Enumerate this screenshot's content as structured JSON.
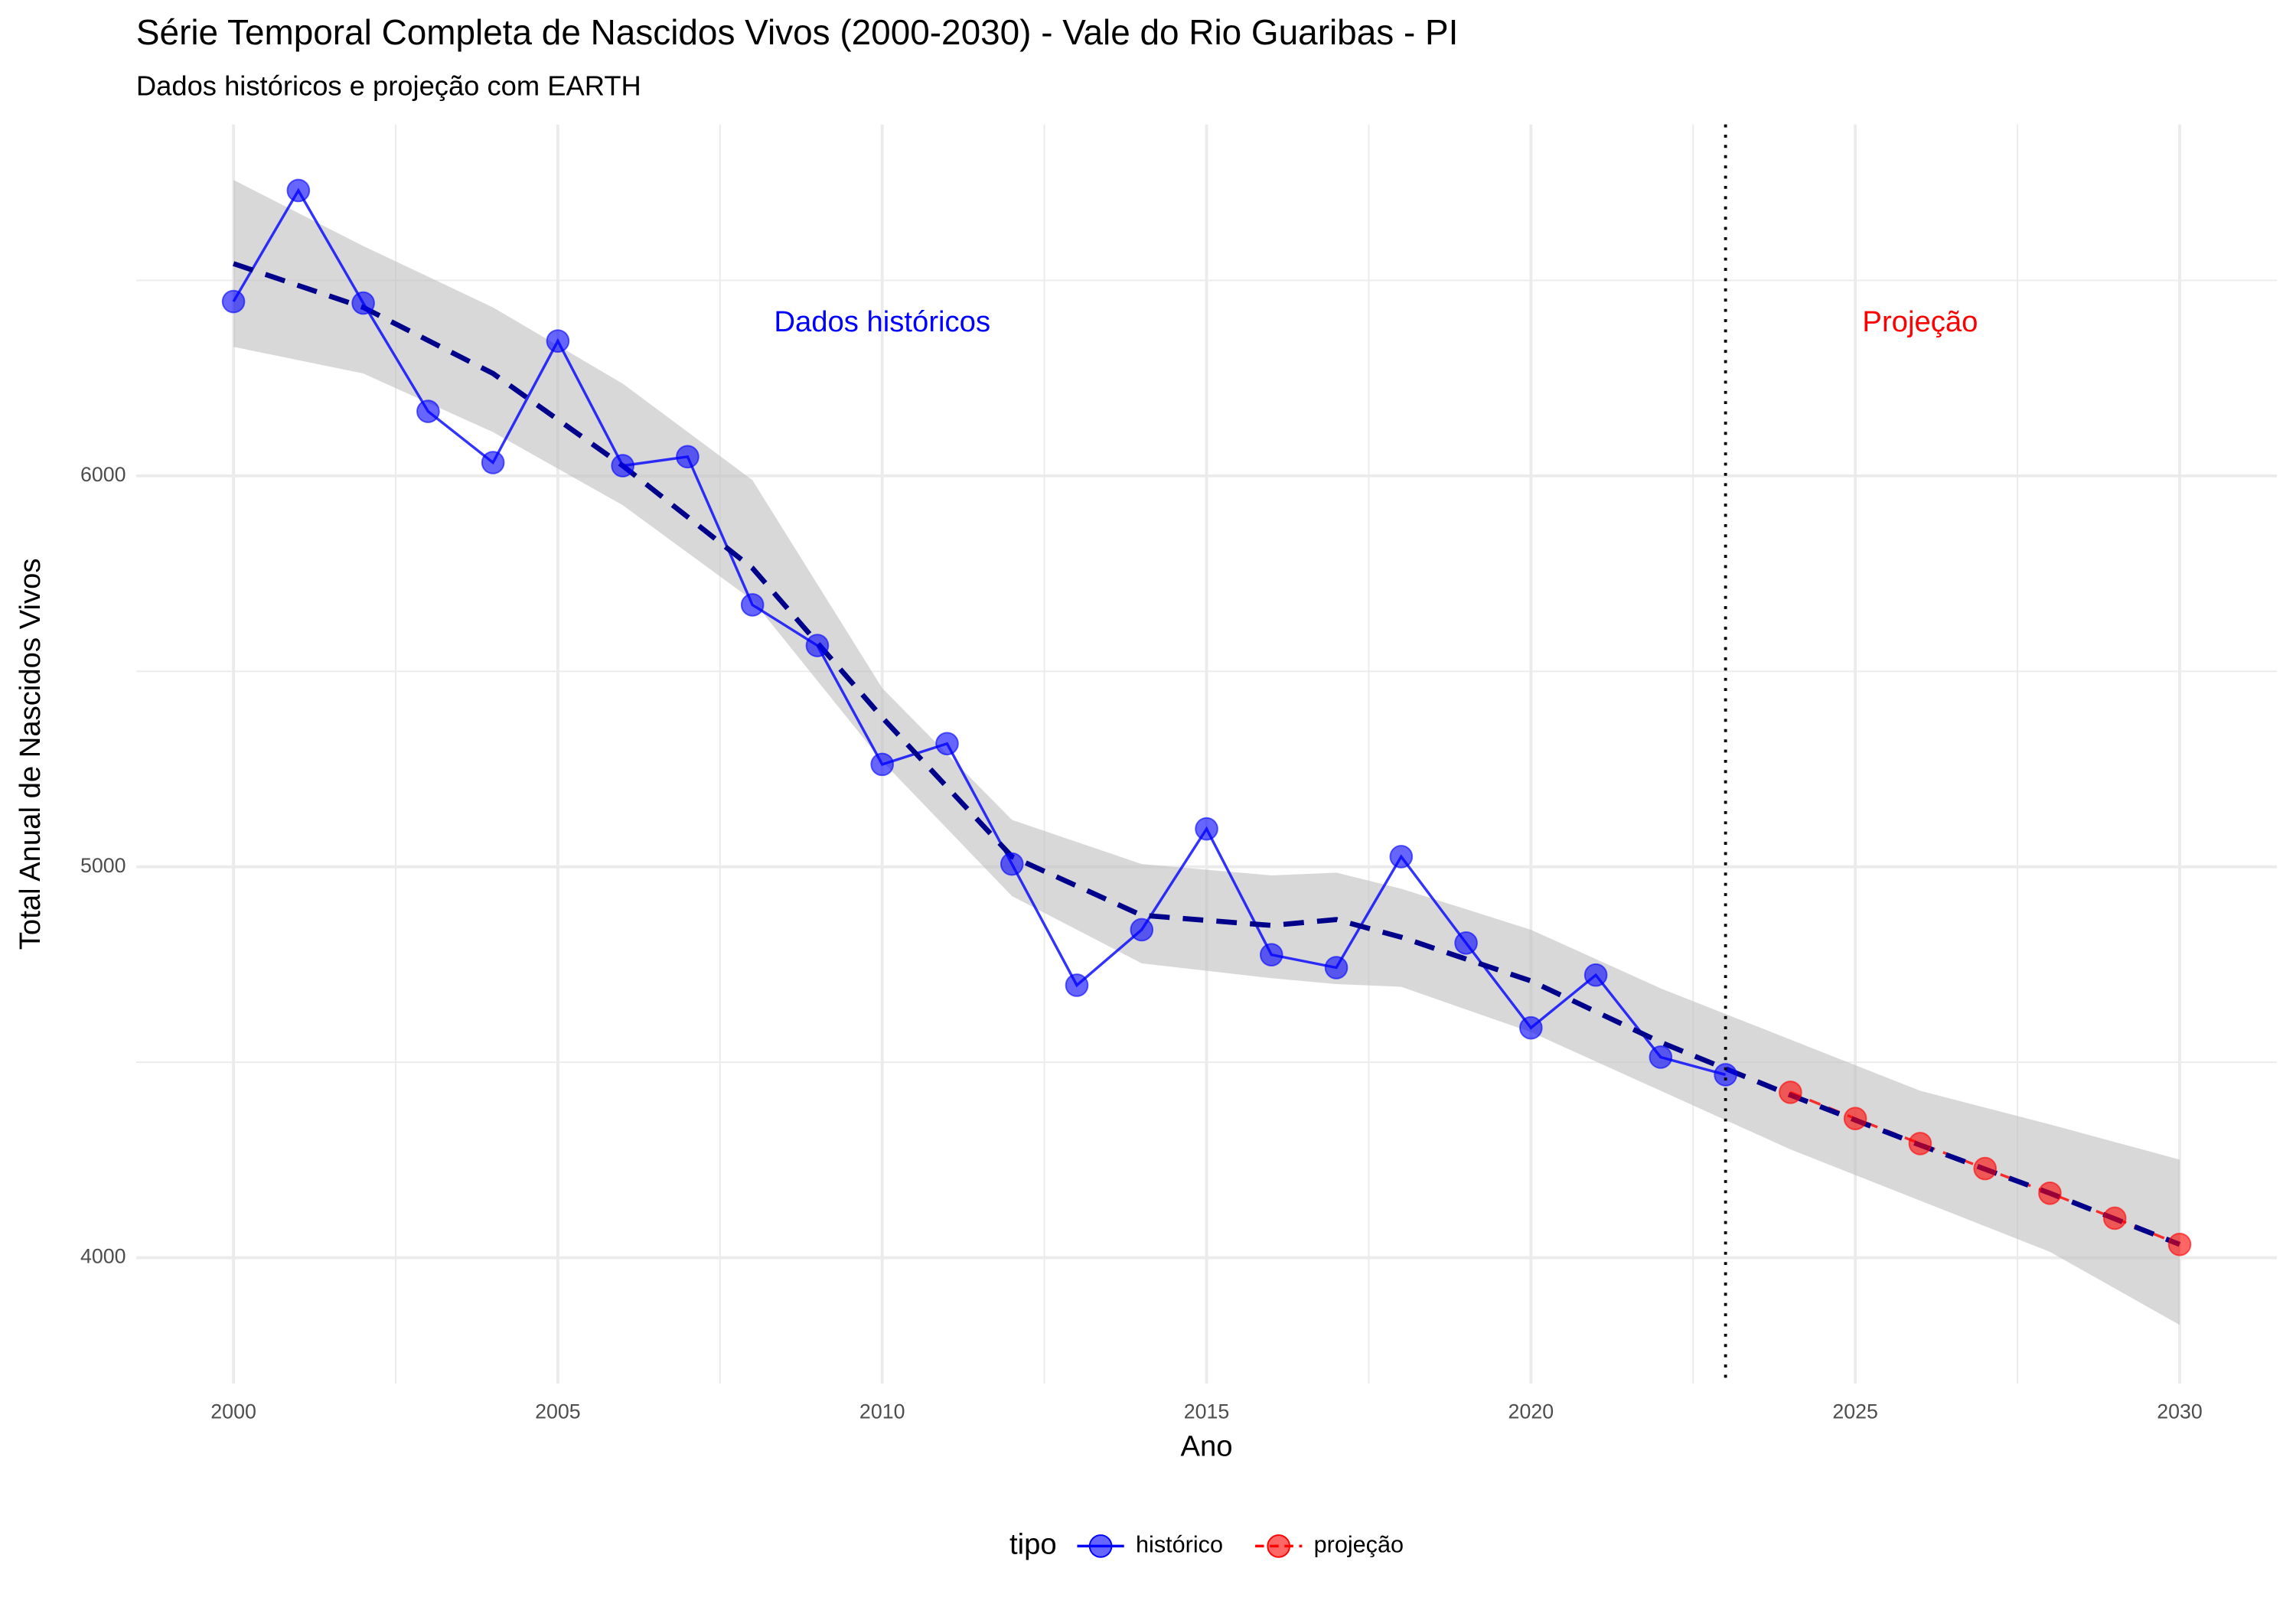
{
  "chart_data": {
    "type": "line",
    "title": "Série Temporal Completa de Nascidos Vivos (2000-2030) -  Vale do Rio Guaribas - PI",
    "subtitle": "Dados históricos e projeção com EARTH",
    "x_label": "Ano",
    "y_label": "Total Anual de Nascidos Vivos",
    "xlim": [
      1998.5,
      2031.5
    ],
    "ylim": [
      3678,
      6899
    ],
    "xticks": [
      2000,
      2005,
      2010,
      2015,
      2020,
      2025,
      2030
    ],
    "yticks": [
      4000,
      5000,
      6000
    ],
    "x_minor_ticks": [
      2002.5,
      2007.5,
      2012.5,
      2017.5,
      2022.5,
      2027.5
    ],
    "y_minor_ticks": [
      4500,
      5500,
      6500
    ],
    "grid": true,
    "legend_title": "tipo",
    "legend_position": "bottom",
    "series": [
      {
        "name": "histórico",
        "color": "#0000ff",
        "line_style": "solid",
        "x": [
          2000,
          2001,
          2002,
          2003,
          2004,
          2005,
          2006,
          2007,
          2008,
          2009,
          2010,
          2011,
          2012,
          2013,
          2014,
          2015,
          2016,
          2017,
          2018,
          2019,
          2020,
          2021,
          2022,
          2023
        ],
        "values": [
          6446,
          6730,
          6442,
          6165,
          6034,
          6345,
          6026,
          6049,
          5670,
          5566,
          5262,
          5315,
          5007,
          4697,
          4839,
          5097,
          4775,
          4742,
          5026,
          4805,
          4588,
          4723,
          4513,
          4468
        ]
      },
      {
        "name": "projeção",
        "color": "#ff0000",
        "line_style": "dashed",
        "x": [
          2024,
          2025,
          2026,
          2027,
          2028,
          2029,
          2030
        ],
        "values": [
          4423,
          4356,
          4292,
          4228,
          4165,
          4101,
          4034
        ]
      }
    ],
    "trend": {
      "color": "#00008b",
      "band_color": "#bebebe",
      "x": [
        2000,
        2002,
        2004,
        2006,
        2008,
        2010,
        2012,
        2014,
        2016,
        2017,
        2018,
        2020,
        2022,
        2024,
        2026,
        2028,
        2030
      ],
      "values": [
        6543,
        6431,
        6262,
        6026,
        5764,
        5382,
        5026,
        4876,
        4850,
        4865,
        4820,
        4708,
        4551,
        4416,
        4288,
        4165,
        4034
      ],
      "upper": [
        6757,
        6588,
        6431,
        6236,
        5989,
        5457,
        5120,
        5007,
        4978,
        4985,
        4944,
        4839,
        4689,
        4558,
        4427,
        4341,
        4251
      ],
      "lower": [
        6330,
        6262,
        6112,
        5925,
        5682,
        5270,
        4925,
        4753,
        4715,
        4700,
        4693,
        4577,
        4427,
        4277,
        4146,
        4015,
        3828
      ]
    },
    "vline": 2023,
    "annotations": [
      {
        "text": "Dados históricos",
        "x": 2010,
        "y": 6390,
        "color": "#0000ff"
      },
      {
        "text": "Projeção",
        "x": 2026,
        "y": 6390,
        "color": "#ff0000"
      }
    ]
  }
}
